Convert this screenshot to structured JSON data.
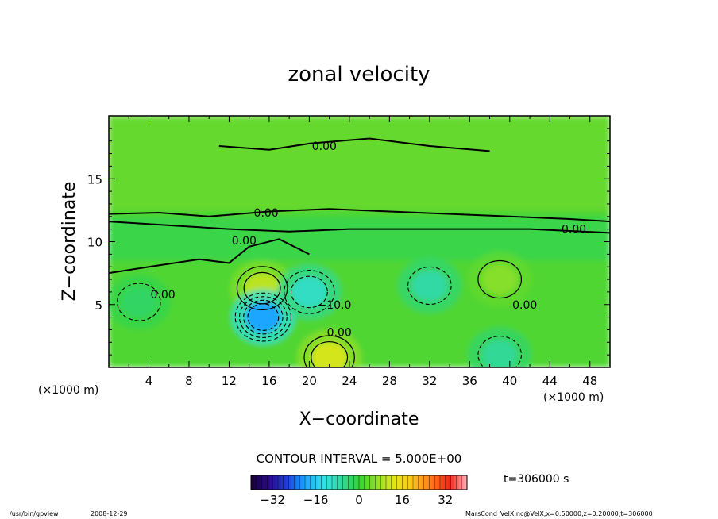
{
  "chart_data": {
    "type": "heatmap",
    "title": "zonal velocity",
    "xlabel": "X−coordinate",
    "ylabel": "Z−coordinate",
    "x_unit_left": "(×1000 m)",
    "x_unit_right": "(×1000 m)",
    "x_ticks": [
      4,
      8,
      12,
      16,
      20,
      24,
      28,
      32,
      36,
      40,
      44,
      48
    ],
    "y_ticks": [
      5,
      10,
      15
    ],
    "xlim": [
      0,
      50
    ],
    "ylim": [
      0,
      20
    ],
    "contour_interval_text": "CONTOUR INTERVAL = 5.000E+00",
    "contour_labels": [
      {
        "text": "0.00",
        "x": 21.5,
        "y": 17.6
      },
      {
        "text": "0.00",
        "x": 15.7,
        "y": 12.3
      },
      {
        "text": "0.00",
        "x": 13.5,
        "y": 10.1
      },
      {
        "text": "0.00",
        "x": 46.4,
        "y": 11.0
      },
      {
        "text": "0.00",
        "x": 5.4,
        "y": 5.8
      },
      {
        "text": "−10.0",
        "x": 22.5,
        "y": 5.0
      },
      {
        "text": "0.00",
        "x": 23.0,
        "y": 2.8
      },
      {
        "text": "0.00",
        "x": 41.5,
        "y": 5.0
      }
    ],
    "features": [
      {
        "kind": "max",
        "x": 15.3,
        "y": 6.3,
        "value": 10
      },
      {
        "kind": "min",
        "x": 15.4,
        "y": 4.0,
        "value": -20
      },
      {
        "kind": "min",
        "x": 20.0,
        "y": 6.0,
        "value": -10
      },
      {
        "kind": "max",
        "x": 22.0,
        "y": 0.8,
        "value": 12
      },
      {
        "kind": "min",
        "x": 32.0,
        "y": 6.5,
        "value": -7
      },
      {
        "kind": "max",
        "x": 39.0,
        "y": 7.0,
        "value": 6
      },
      {
        "kind": "min",
        "x": 39.0,
        "y": 1.0,
        "value": -6
      },
      {
        "kind": "min",
        "x": 3.0,
        "y": 5.2,
        "value": -3
      }
    ],
    "colorbar": {
      "range": [
        -40,
        40
      ],
      "ticks": [
        -32,
        -16,
        0,
        16,
        32
      ],
      "colors": [
        "#1a0033",
        "#2a0a8a",
        "#1f3fd8",
        "#1aa6ff",
        "#33e0e8",
        "#33d9a0",
        "#33d233",
        "#8fe02a",
        "#e6e619",
        "#ffc21a",
        "#ff7a1a",
        "#ee2a1a",
        "#ffb0b8"
      ]
    }
  },
  "time_label": "t=306000 s",
  "footer": {
    "left_path": "/usr/bin/gpview",
    "left_date": "2008-12-29",
    "right_text": "MarsCond_VelX.nc@VelX,x=0:50000,z=0:20000,t=306000"
  }
}
